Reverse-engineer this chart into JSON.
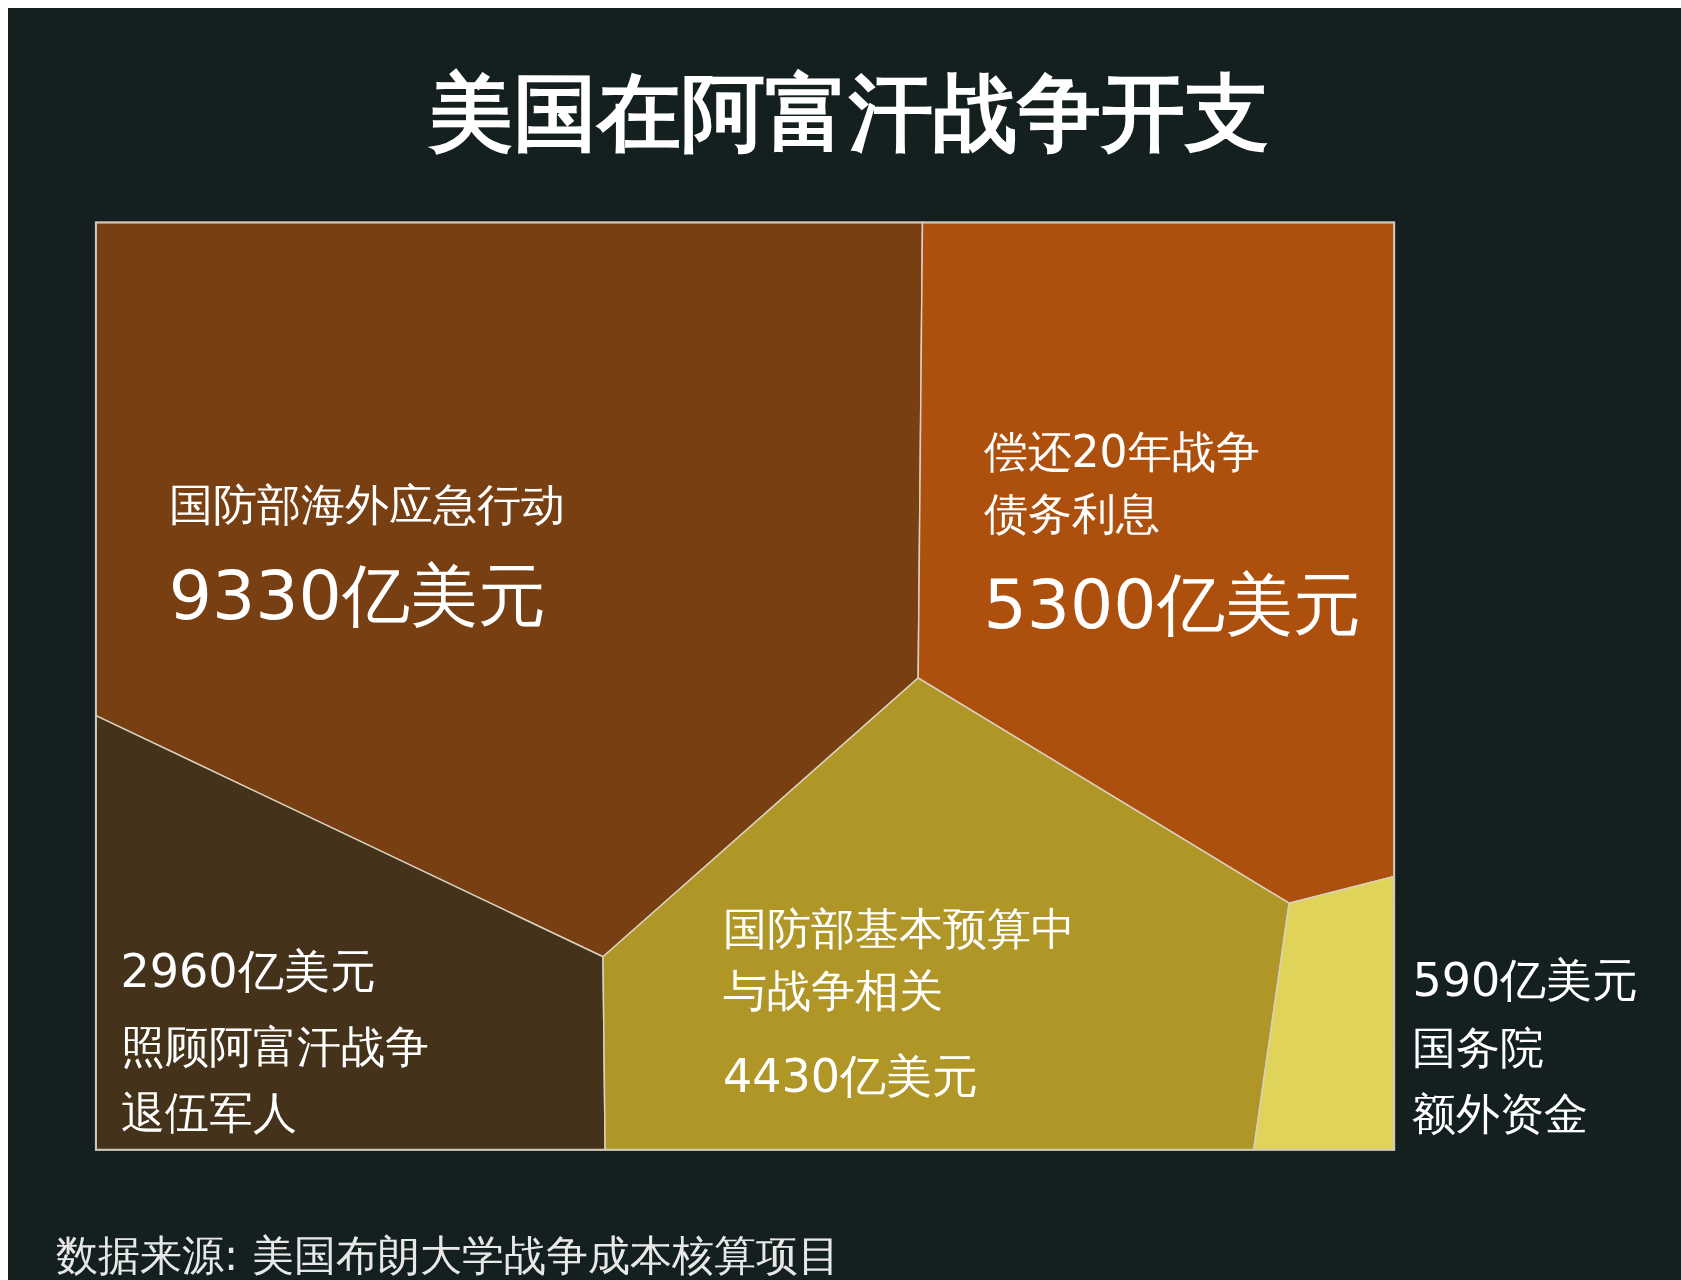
{
  "chart_data": {
    "type": "other",
    "title": "美国在阿富汗战争开支",
    "categories": [
      "国防部海外应急行动",
      "偿还20年战争债务利息",
      "照顾阿富汗战争退伍军人",
      "国防部基本预算中与战争相关",
      "国务院额外资金"
    ],
    "values": [
      9330,
      5300,
      2960,
      4430,
      590
    ],
    "value_labels": [
      "9330亿美元",
      "5300亿美元",
      "2960亿美元",
      "4430亿美元",
      "590亿美元"
    ],
    "colors": [
      "#773f12",
      "#ad500d",
      "#45321a",
      "#b09626",
      "#e0d35a"
    ],
    "annotations": [
      "数据来源: 美国布朗大学战争成本核算项目"
    ]
  }
}
